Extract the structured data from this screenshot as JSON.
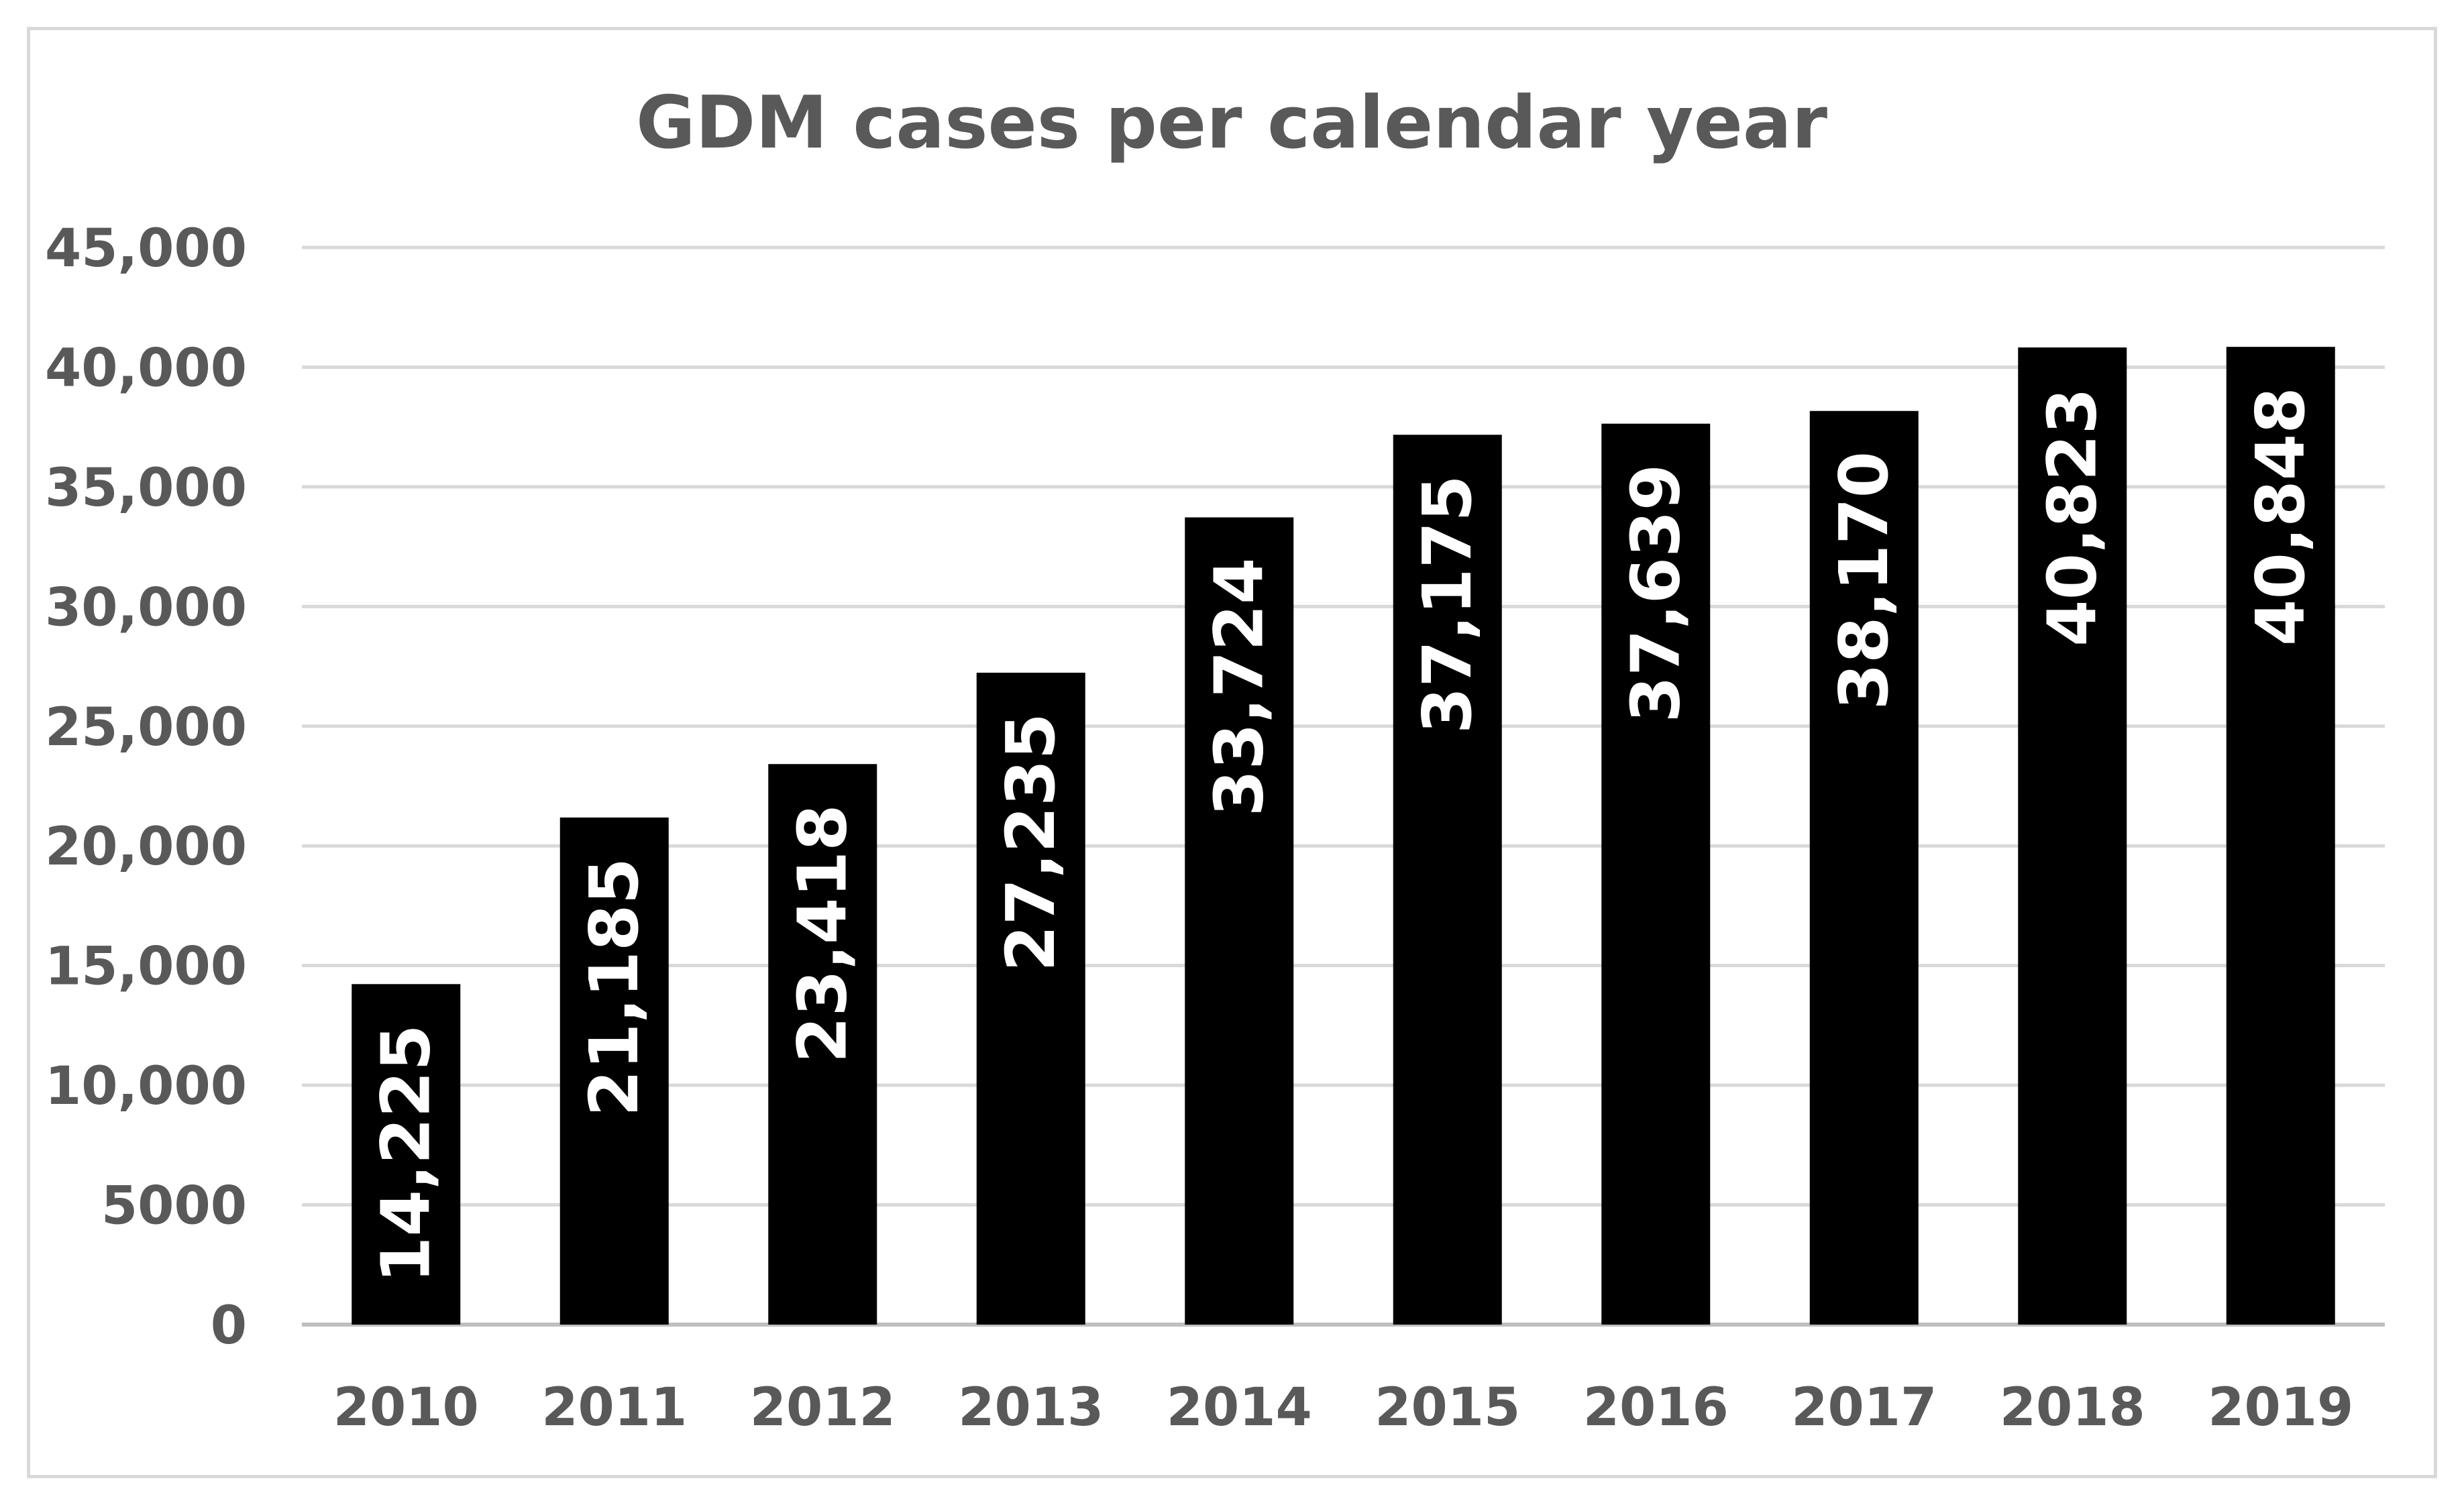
{
  "chart_data": {
    "type": "bar",
    "title": "GDM cases per calendar year",
    "xlabel": "",
    "ylabel": "",
    "categories": [
      "2010",
      "2011",
      "2012",
      "2013",
      "2014",
      "2015",
      "2016",
      "2017",
      "2018",
      "2019"
    ],
    "values": [
      14225,
      21185,
      23418,
      27235,
      33724,
      37175,
      37639,
      38170,
      40823,
      40848
    ],
    "data_labels": [
      "14,225",
      "21,185",
      "23,418",
      "27,235",
      "33,724",
      "37,175",
      "37,639",
      "38,170",
      "40,823",
      "40,848"
    ],
    "ylim": [
      0,
      45000
    ],
    "yticks": [
      0,
      5000,
      10000,
      15000,
      20000,
      25000,
      30000,
      35000,
      40000,
      45000
    ],
    "ytick_labels": [
      "0",
      "5000",
      "10,000",
      "15,000",
      "20,000",
      "25,000",
      "30,000",
      "35,000",
      "40,000",
      "45,000"
    ],
    "grid": true,
    "legend": "none",
    "bar_color": "#000000",
    "text_color": "#595959",
    "data_label_color": "#ffffff",
    "gridline_color": "#d9d9d9"
  }
}
